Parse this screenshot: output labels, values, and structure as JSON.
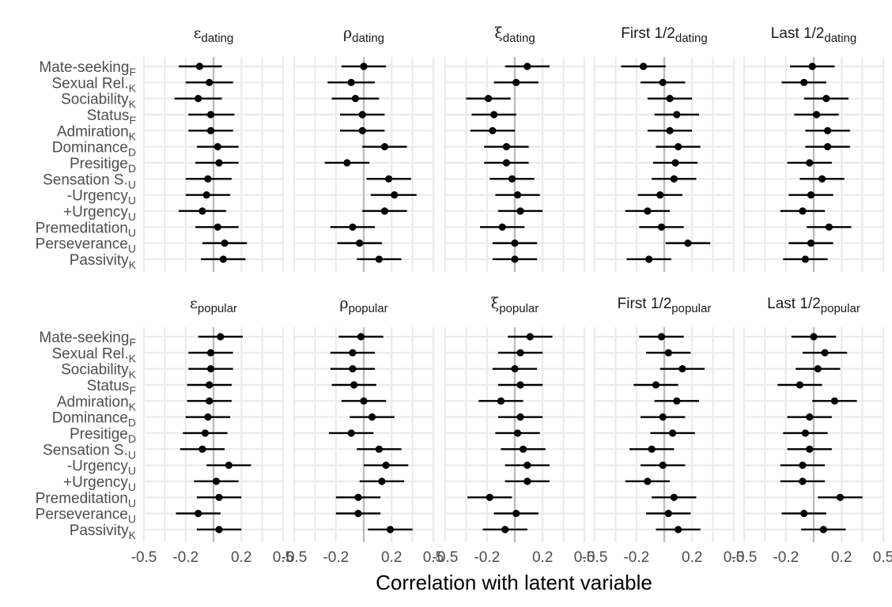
{
  "chart_data": {
    "type": "scatter",
    "xlabel": "Correlation with latent variable",
    "xlim": [
      -0.5,
      0.5
    ],
    "xticks": [
      "-0.5",
      "-0.2",
      "0.2",
      "0.5"
    ],
    "xtick_values": [
      -0.5,
      -0.2,
      0.2,
      0.5
    ],
    "grid": true,
    "categories": [
      "Mate-seeking",
      "Sexual Rel.",
      "Sociability",
      "Status",
      "Admiration",
      "Dominance",
      "Presitige",
      "Sensation S.",
      "-Urgency",
      "+Urgency",
      "Premeditation",
      "Perseverance",
      "Passivity"
    ],
    "category_subscripts": [
      "F",
      "K",
      "K",
      "F",
      "K",
      "D",
      "D",
      "U",
      "U",
      "U",
      "U",
      "U",
      "K"
    ],
    "panels": [
      {
        "title": {
          "sym": "ε",
          "sub": "dating"
        },
        "row": 0,
        "col": 0,
        "estimates": [
          -0.1,
          -0.03,
          -0.11,
          -0.02,
          -0.02,
          0.03,
          0.04,
          -0.04,
          -0.05,
          -0.08,
          0.03,
          0.08,
          0.07
        ],
        "lower": [
          -0.25,
          -0.2,
          -0.28,
          -0.18,
          -0.18,
          -0.12,
          -0.13,
          -0.2,
          -0.2,
          -0.25,
          -0.13,
          -0.08,
          -0.09
        ],
        "upper": [
          0.06,
          0.14,
          0.06,
          0.15,
          0.14,
          0.18,
          0.18,
          0.13,
          0.12,
          0.09,
          0.18,
          0.24,
          0.23
        ]
      },
      {
        "title": {
          "sym": "ρ",
          "sub": "dating"
        },
        "row": 0,
        "col": 1,
        "estimates": [
          0.0,
          -0.09,
          -0.06,
          -0.01,
          -0.01,
          0.15,
          -0.12,
          0.18,
          0.22,
          0.15,
          -0.08,
          -0.03,
          0.11
        ],
        "lower": [
          -0.16,
          -0.26,
          -0.23,
          -0.17,
          -0.17,
          -0.01,
          -0.28,
          0.02,
          0.05,
          -0.01,
          -0.24,
          -0.19,
          -0.05
        ],
        "upper": [
          0.16,
          0.08,
          0.11,
          0.15,
          0.15,
          0.31,
          0.04,
          0.34,
          0.38,
          0.31,
          0.08,
          0.13,
          0.27
        ]
      },
      {
        "title": {
          "sym": "ξ",
          "sub": "dating"
        },
        "row": 0,
        "col": 2,
        "estimates": [
          0.09,
          0.01,
          -0.19,
          -0.15,
          -0.16,
          -0.06,
          -0.06,
          -0.02,
          0.02,
          0.04,
          -0.09,
          0.0,
          0.0
        ],
        "lower": [
          -0.07,
          -0.15,
          -0.35,
          -0.31,
          -0.32,
          -0.22,
          -0.22,
          -0.18,
          -0.14,
          -0.12,
          -0.25,
          -0.16,
          -0.16
        ],
        "upper": [
          0.25,
          0.17,
          -0.03,
          0.01,
          0.0,
          0.1,
          0.1,
          0.14,
          0.18,
          0.2,
          0.07,
          0.16,
          0.16
        ]
      },
      {
        "title": {
          "pre": "First 1/2",
          "sub": "dating"
        },
        "row": 0,
        "col": 3,
        "estimates": [
          -0.15,
          -0.01,
          0.04,
          0.09,
          0.04,
          0.1,
          0.08,
          0.07,
          -0.03,
          -0.12,
          -0.02,
          0.17,
          -0.11
        ],
        "lower": [
          -0.31,
          -0.17,
          -0.12,
          -0.07,
          -0.12,
          -0.06,
          -0.08,
          -0.09,
          -0.19,
          -0.28,
          -0.18,
          0.01,
          -0.27
        ],
        "upper": [
          0.01,
          0.15,
          0.2,
          0.25,
          0.2,
          0.26,
          0.24,
          0.23,
          0.13,
          0.04,
          0.14,
          0.33,
          0.05
        ]
      },
      {
        "title": {
          "pre": "Last 1/2",
          "sub": "dating"
        },
        "row": 0,
        "col": 4,
        "estimates": [
          -0.01,
          -0.07,
          0.09,
          0.02,
          0.1,
          0.1,
          -0.03,
          0.06,
          -0.02,
          -0.08,
          0.11,
          -0.02,
          -0.06
        ],
        "lower": [
          -0.17,
          -0.23,
          -0.07,
          -0.14,
          -0.06,
          -0.06,
          -0.19,
          -0.1,
          -0.18,
          -0.24,
          -0.05,
          -0.18,
          -0.22
        ],
        "upper": [
          0.15,
          0.09,
          0.25,
          0.18,
          0.26,
          0.26,
          0.13,
          0.22,
          0.14,
          0.08,
          0.27,
          0.14,
          0.1
        ]
      },
      {
        "title": {
          "sym": "ε",
          "sub": "popular"
        },
        "row": 1,
        "col": 0,
        "estimates": [
          0.05,
          -0.02,
          -0.02,
          -0.03,
          -0.03,
          -0.04,
          -0.06,
          -0.08,
          0.11,
          0.02,
          0.04,
          -0.11,
          0.04
        ],
        "lower": [
          -0.11,
          -0.18,
          -0.18,
          -0.19,
          -0.19,
          -0.2,
          -0.22,
          -0.24,
          -0.05,
          -0.14,
          -0.12,
          -0.27,
          -0.12
        ],
        "upper": [
          0.21,
          0.14,
          0.14,
          0.13,
          0.13,
          0.12,
          0.1,
          0.08,
          0.27,
          0.18,
          0.2,
          0.05,
          0.2
        ]
      },
      {
        "title": {
          "sym": "ρ",
          "sub": "popular"
        },
        "row": 1,
        "col": 1,
        "estimates": [
          -0.02,
          -0.08,
          -0.08,
          -0.07,
          0.0,
          0.06,
          -0.09,
          0.11,
          0.16,
          0.13,
          -0.04,
          -0.04,
          0.19
        ],
        "lower": [
          -0.18,
          -0.24,
          -0.24,
          -0.23,
          -0.16,
          -0.1,
          -0.25,
          -0.05,
          0.0,
          -0.03,
          -0.2,
          -0.2,
          0.03
        ],
        "upper": [
          0.14,
          0.08,
          0.08,
          0.09,
          0.16,
          0.22,
          0.07,
          0.27,
          0.32,
          0.29,
          0.12,
          0.12,
          0.35
        ]
      },
      {
        "title": {
          "sym": "ξ",
          "sub": "popular"
        },
        "row": 1,
        "col": 2,
        "estimates": [
          0.11,
          0.04,
          0.0,
          0.04,
          -0.1,
          0.04,
          0.02,
          0.06,
          0.09,
          0.09,
          -0.18,
          0.01,
          -0.07
        ],
        "lower": [
          -0.05,
          -0.12,
          -0.16,
          -0.12,
          -0.26,
          -0.12,
          -0.14,
          -0.1,
          -0.07,
          -0.07,
          -0.34,
          -0.15,
          -0.23
        ],
        "upper": [
          0.27,
          0.2,
          0.16,
          0.2,
          0.06,
          0.2,
          0.18,
          0.22,
          0.25,
          0.25,
          -0.02,
          0.17,
          0.09
        ]
      },
      {
        "title": {
          "pre": "First 1/2",
          "sub": "popular"
        },
        "row": 1,
        "col": 3,
        "estimates": [
          -0.02,
          0.03,
          0.13,
          -0.06,
          0.09,
          -0.01,
          0.06,
          -0.09,
          -0.01,
          -0.12,
          0.07,
          0.03,
          0.1
        ],
        "lower": [
          -0.18,
          -0.13,
          -0.03,
          -0.22,
          -0.07,
          -0.17,
          -0.1,
          -0.25,
          -0.17,
          -0.28,
          -0.09,
          -0.13,
          -0.06
        ],
        "upper": [
          0.14,
          0.19,
          0.29,
          0.1,
          0.25,
          0.15,
          0.22,
          0.07,
          0.15,
          0.04,
          0.23,
          0.19,
          0.26
        ]
      },
      {
        "title": {
          "pre": "Last 1/2",
          "sub": "popular"
        },
        "row": 1,
        "col": 4,
        "estimates": [
          0.0,
          0.08,
          0.03,
          -0.1,
          0.15,
          -0.03,
          -0.06,
          -0.03,
          -0.08,
          -0.08,
          0.19,
          -0.07,
          0.07
        ],
        "lower": [
          -0.16,
          -0.08,
          -0.13,
          -0.26,
          -0.01,
          -0.19,
          -0.22,
          -0.19,
          -0.24,
          -0.24,
          0.03,
          -0.23,
          -0.09
        ],
        "upper": [
          0.16,
          0.24,
          0.19,
          0.06,
          0.31,
          0.13,
          0.1,
          0.13,
          0.08,
          0.08,
          0.35,
          0.09,
          0.23
        ]
      }
    ]
  }
}
